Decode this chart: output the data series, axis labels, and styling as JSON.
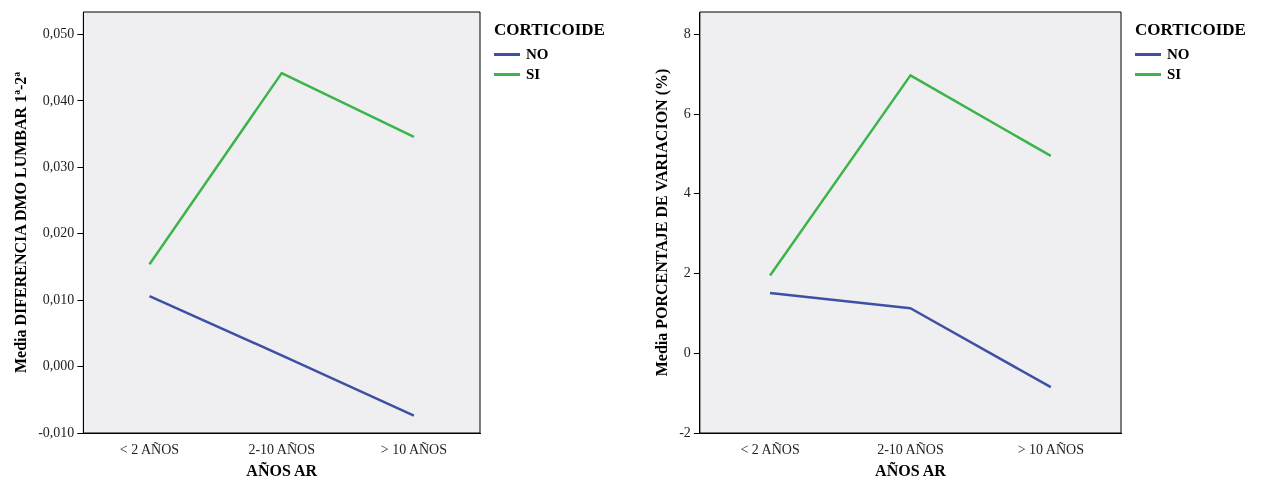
{
  "chart_data": [
    {
      "type": "line",
      "xlabel": "AÑOS AR",
      "ylabel": "Media DIFERENCIA DMO LUMBAR 1ª-2ª",
      "legend_title": "CORTICOIDE",
      "legend": "top right",
      "grid": false,
      "marker": "none",
      "categories": [
        "< 2 AÑOS",
        "2-10 AÑOS",
        "> 10 AÑOS"
      ],
      "ylim": [
        -0.01,
        0.0534
      ],
      "yticks": [
        {
          "value": -0.01,
          "label": "-0,010"
        },
        {
          "value": 0,
          "label": "0,000"
        },
        {
          "value": 0.01,
          "label": "0,010"
        },
        {
          "value": 0.02,
          "label": "0,020"
        },
        {
          "value": 0.03,
          "label": "0,030"
        },
        {
          "value": 0.04,
          "label": "0,040"
        },
        {
          "value": 0.05,
          "label": "0,050"
        }
      ],
      "series": [
        {
          "name": "NO",
          "color": "#3f4fa3",
          "values": [
            0.0106,
            0.0017,
            -0.0074
          ]
        },
        {
          "name": "SI",
          "color": "#3cb44b",
          "values": [
            0.0154,
            0.0442,
            0.0346
          ]
        }
      ]
    },
    {
      "type": "line",
      "xlabel": "AÑOS AR",
      "ylabel": "Media PORCENTAJE DE VARIACION (%)",
      "legend_title": "CORTICOIDE",
      "legend": "top right",
      "grid": false,
      "marker": "none",
      "categories": [
        "< 2 AÑOS",
        "2-10 AÑOS",
        "> 10 AÑOS"
      ],
      "ylim": [
        -2,
        8.56
      ],
      "yticks": [
        -2,
        0,
        2,
        4,
        6,
        8
      ],
      "series": [
        {
          "name": "NO",
          "color": "#3f4fa3",
          "values": [
            1.51,
            1.13,
            -0.85
          ]
        },
        {
          "name": "SI",
          "color": "#3cb44b",
          "values": [
            1.95,
            6.97,
            4.95
          ]
        }
      ]
    }
  ]
}
